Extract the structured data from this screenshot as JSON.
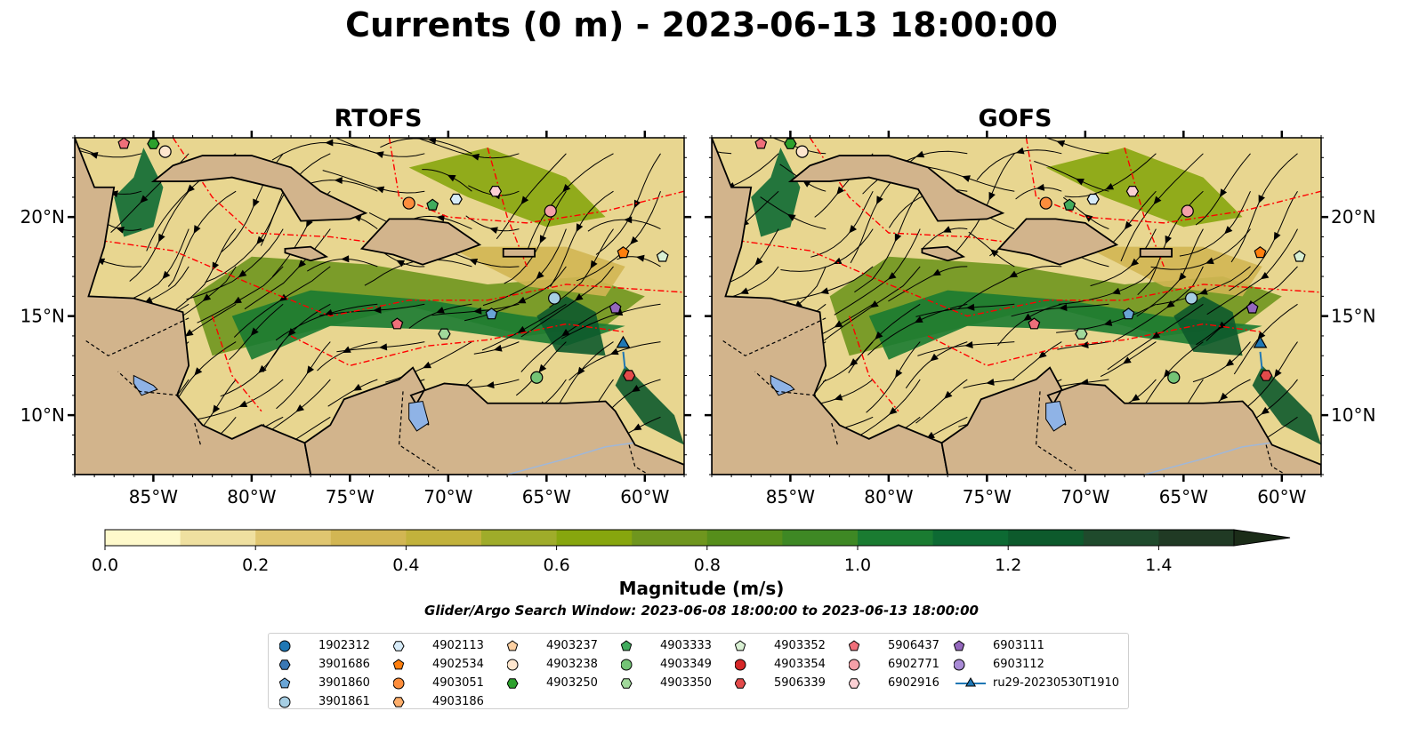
{
  "title": "Currents (0 m) - 2023-06-13 18:00:00",
  "panels": [
    {
      "title": "RTOFS",
      "name": "rtofs"
    },
    {
      "title": "GOFS",
      "name": "gofs"
    }
  ],
  "map": {
    "lon_range": [
      -89,
      -58
    ],
    "lat_range": [
      7,
      24
    ],
    "lon_ticks": [
      "85°W",
      "80°W",
      "75°W",
      "70°W",
      "65°W",
      "60°W"
    ],
    "lat_ticks": [
      "20°N",
      "15°N",
      "10°N"
    ],
    "land_color": "#d2b48c",
    "lake_color": "#8fb3e6",
    "eez_line_color": "#ff0000",
    "streamline_color": "#000000"
  },
  "colorbar": {
    "label": "Magnitude (m/s)",
    "ticks": [
      "0.0",
      "0.2",
      "0.4",
      "0.6",
      "0.8",
      "1.0",
      "1.2",
      "1.4"
    ],
    "range": [
      0,
      1.5
    ],
    "extend": "max",
    "colors": [
      "#fef9cb",
      "#efe0a0",
      "#e0c670",
      "#d2b653",
      "#c2b23c",
      "#9fac2a",
      "#87a60e",
      "#6f961e",
      "#568e1b",
      "#3e8824",
      "#1a7b31",
      "#0d6a33",
      "#0d5a2c",
      "#1f4a2c",
      "#203a24",
      "#1b2c18"
    ]
  },
  "search_window": "Glider/Argo Search Window: 2023-06-08 18:00:00 to 2023-06-13 18:00:00",
  "legend": [
    {
      "label": "1902312",
      "color": "#1f77b4",
      "marker": "circle"
    },
    {
      "label": "3901686",
      "color": "#3a78b5",
      "marker": "hexagon"
    },
    {
      "label": "3901860",
      "color": "#6aa5d6",
      "marker": "pentagon"
    },
    {
      "label": "3901861",
      "color": "#a6cee3",
      "marker": "circle"
    },
    {
      "label": "4902113",
      "color": "#d7ebf8",
      "marker": "hexagon"
    },
    {
      "label": "4902534",
      "color": "#ff7f0e",
      "marker": "pentagon"
    },
    {
      "label": "4903051",
      "color": "#fd8d3c",
      "marker": "circle"
    },
    {
      "label": "4903186",
      "color": "#fdae6b",
      "marker": "hexagon"
    },
    {
      "label": "4903237",
      "color": "#fdd0a2",
      "marker": "pentagon"
    },
    {
      "label": "4903238",
      "color": "#fee6ce",
      "marker": "circle"
    },
    {
      "label": "4903250",
      "color": "#2ca02c",
      "marker": "hexagon"
    },
    {
      "label": "4903333",
      "color": "#41ab5d",
      "marker": "pentagon"
    },
    {
      "label": "4903349",
      "color": "#74c476",
      "marker": "circle"
    },
    {
      "label": "4903350",
      "color": "#a1d99b",
      "marker": "hexagon"
    },
    {
      "label": "4903352",
      "color": "#d9f0d3",
      "marker": "pentagon"
    },
    {
      "label": "4903354",
      "color": "#d62728",
      "marker": "circle"
    },
    {
      "label": "5906339",
      "color": "#e34a4a",
      "marker": "hexagon"
    },
    {
      "label": "5906437",
      "color": "#ef6f7a",
      "marker": "pentagon"
    },
    {
      "label": "6902771",
      "color": "#f4a0a8",
      "marker": "circle"
    },
    {
      "label": "6902916",
      "color": "#fcd0d4",
      "marker": "hexagon"
    },
    {
      "label": "6903111",
      "color": "#9467bd",
      "marker": "pentagon"
    },
    {
      "label": "6903112",
      "color": "#a98bd6",
      "marker": "circle"
    },
    {
      "label": "ru29-20230530T1910",
      "color": "#1f77b4",
      "marker": "triangle-line"
    }
  ],
  "floats": {
    "rtofs": [
      {
        "label": "5906437",
        "lon": -86.5,
        "lat": 23.7
      },
      {
        "label": "4903250",
        "lon": -85.0,
        "lat": 23.7
      },
      {
        "label": "4903238",
        "lon": -84.4,
        "lat": 23.3
      },
      {
        "label": "4903051",
        "lon": -72.0,
        "lat": 20.7
      },
      {
        "label": "4903333",
        "lon": -70.8,
        "lat": 20.6
      },
      {
        "label": "4902113",
        "lon": -69.6,
        "lat": 20.9
      },
      {
        "label": "6902916",
        "lon": -67.6,
        "lat": 21.3
      },
      {
        "label": "6902771",
        "lon": -64.8,
        "lat": 20.3
      },
      {
        "label": "4902534",
        "lon": -61.1,
        "lat": 18.2
      },
      {
        "label": "4903352",
        "lon": -59.1,
        "lat": 18.0
      },
      {
        "label": "3901861",
        "lon": -64.6,
        "lat": 15.9
      },
      {
        "label": "3901860",
        "lon": -67.8,
        "lat": 15.1
      },
      {
        "label": "6903111",
        "lon": -61.5,
        "lat": 15.4
      },
      {
        "label": "5906437",
        "lon": -72.6,
        "lat": 14.6
      },
      {
        "label": "4903350",
        "lon": -70.2,
        "lat": 14.1
      },
      {
        "label": "4903349",
        "lon": -65.5,
        "lat": 11.9
      },
      {
        "label": "5906339",
        "lon": -60.8,
        "lat": 12.0
      }
    ],
    "gofs": [
      {
        "label": "5906437",
        "lon": -86.5,
        "lat": 23.7
      },
      {
        "label": "4903250",
        "lon": -85.0,
        "lat": 23.7
      },
      {
        "label": "4903238",
        "lon": -84.4,
        "lat": 23.3
      },
      {
        "label": "4903051",
        "lon": -72.0,
        "lat": 20.7
      },
      {
        "label": "4903333",
        "lon": -70.8,
        "lat": 20.6
      },
      {
        "label": "4902113",
        "lon": -69.6,
        "lat": 20.9
      },
      {
        "label": "6902916",
        "lon": -67.6,
        "lat": 21.3
      },
      {
        "label": "6902771",
        "lon": -64.8,
        "lat": 20.3
      },
      {
        "label": "4902534",
        "lon": -61.1,
        "lat": 18.2
      },
      {
        "label": "4903352",
        "lon": -59.1,
        "lat": 18.0
      },
      {
        "label": "3901861",
        "lon": -64.6,
        "lat": 15.9
      },
      {
        "label": "3901860",
        "lon": -67.8,
        "lat": 15.1
      },
      {
        "label": "6903111",
        "lon": -61.5,
        "lat": 15.4
      },
      {
        "label": "5906437",
        "lon": -72.6,
        "lat": 14.6
      },
      {
        "label": "4903350",
        "lon": -70.2,
        "lat": 14.1
      },
      {
        "label": "4903349",
        "lon": -65.5,
        "lat": 11.9
      },
      {
        "label": "5906339",
        "lon": -60.8,
        "lat": 12.0
      }
    ]
  },
  "glider": {
    "label": "ru29-20230530T1910",
    "lon": -61.1,
    "lat": 13.6
  }
}
